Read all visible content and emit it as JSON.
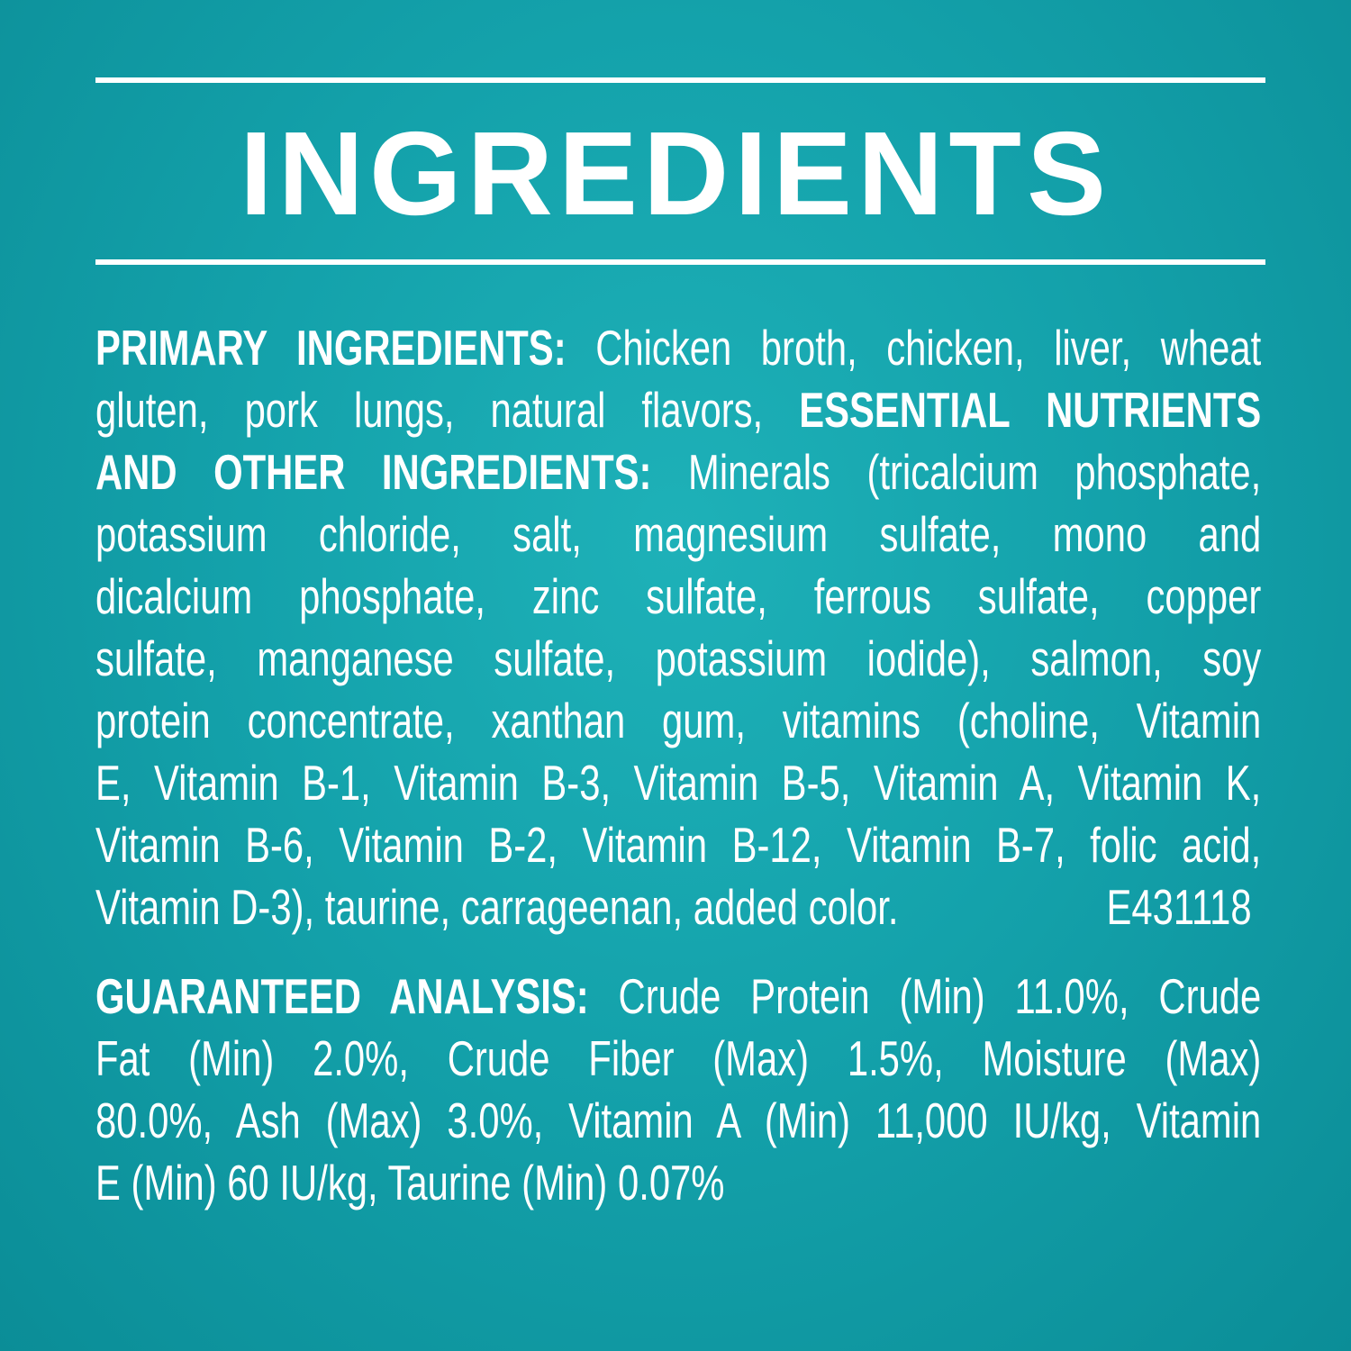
{
  "title": "INGREDIENTS",
  "colors": {
    "background": "#14a2ab",
    "text": "#ffffff"
  },
  "paragraphs": [
    {
      "lines": [
        [
          {
            "t": "PRIMARY INGREDIENTS: ",
            "b": true
          },
          {
            "t": "Chicken broth, chicken, liver, wheat",
            "b": false
          }
        ],
        [
          {
            "t": "gluten, pork lungs, natural flavors, ",
            "b": false
          },
          {
            "t": "ESSENTIAL NUTRIENTS",
            "b": true
          }
        ],
        [
          {
            "t": "AND OTHER INGREDIENTS: ",
            "b": true
          },
          {
            "t": "Minerals (tricalcium phosphate,",
            "b": false
          }
        ],
        [
          {
            "t": "potassium chloride, salt, magnesium sulfate, mono and",
            "b": false
          }
        ],
        [
          {
            "t": "dicalcium phosphate, zinc sulfate, ferrous sulfate, copper",
            "b": false
          }
        ],
        [
          {
            "t": "sulfate, manganese sulfate, potassium iodide), salmon, soy",
            "b": false
          }
        ],
        [
          {
            "t": "protein concentrate, xanthan gum, vitamins (choline, Vitamin",
            "b": false
          }
        ],
        [
          {
            "t": "E, Vitamin B-1, Vitamin B-3, Vitamin B-5, Vitamin A, Vitamin K,",
            "b": false
          }
        ],
        [
          {
            "t": "Vitamin B-6, Vitamin B-2, Vitamin B-12, Vitamin B-7, folic acid,",
            "b": false
          }
        ],
        [
          {
            "t": "Vitamin D-3), taurine, carrageenan, added color.",
            "b": false
          }
        ]
      ],
      "code": "E431118"
    },
    {
      "lines": [
        [
          {
            "t": "GUARANTEED ANALYSIS: ",
            "b": true
          },
          {
            "t": "Crude Protein (Min) 11.0%, Crude",
            "b": false
          }
        ],
        [
          {
            "t": "Fat (Min) 2.0%, Crude Fiber (Max) 1.5%, Moisture (Max)",
            "b": false
          }
        ],
        [
          {
            "t": "80.0%, Ash (Max) 3.0%, Vitamin A (Min) 11,000 IU/kg, Vitamin",
            "b": false
          }
        ],
        [
          {
            "t": "E (Min) 60 IU/kg, Taurine (Min) 0.07%",
            "b": false
          }
        ]
      ]
    }
  ]
}
